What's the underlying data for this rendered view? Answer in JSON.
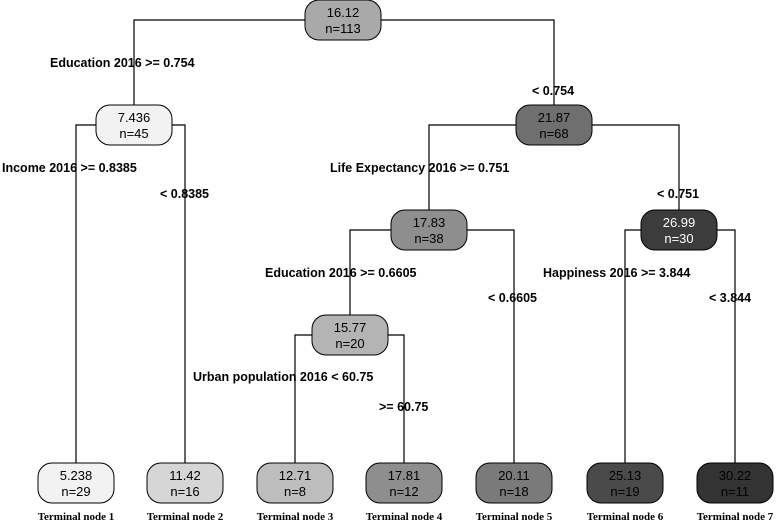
{
  "nodes": [
    {
      "id": "root",
      "value": "16.12",
      "n": "n=113",
      "fill": "#a9a9a9",
      "text": "#000000"
    },
    {
      "id": "n2",
      "value": "7.436",
      "n": "n=45",
      "fill": "#f2f2f2",
      "text": "#000000"
    },
    {
      "id": "n3",
      "value": "21.87",
      "n": "n=68",
      "fill": "#6f6f6f",
      "text": "#000000"
    },
    {
      "id": "n6",
      "value": "17.83",
      "n": "n=38",
      "fill": "#8e8e8e",
      "text": "#000000"
    },
    {
      "id": "n7",
      "value": "26.99",
      "n": "n=30",
      "fill": "#3c3c3c",
      "text": "#ffffff"
    },
    {
      "id": "n12",
      "value": "15.77",
      "n": "n=20",
      "fill": "#b4b4b4",
      "text": "#000000"
    },
    {
      "id": "t1",
      "value": "5.238",
      "n": "n=29",
      "fill": "#f2f2f2",
      "text": "#000000"
    },
    {
      "id": "t2",
      "value": "11.42",
      "n": "n=16",
      "fill": "#d6d6d6",
      "text": "#000000"
    },
    {
      "id": "t3",
      "value": "12.71",
      "n": "n=8",
      "fill": "#bdbdbd",
      "text": "#000000"
    },
    {
      "id": "t4",
      "value": "17.81",
      "n": "n=12",
      "fill": "#8e8e8e",
      "text": "#000000"
    },
    {
      "id": "t5",
      "value": "20.11",
      "n": "n=18",
      "fill": "#7a7a7a",
      "text": "#000000"
    },
    {
      "id": "t6",
      "value": "25.13",
      "n": "n=19",
      "fill": "#4a4a4a",
      "text": "#000000"
    },
    {
      "id": "t7",
      "value": "30.22",
      "n": "n=11",
      "fill": "#333333",
      "text": "#000000"
    }
  ],
  "splits": [
    {
      "id": "s1",
      "text": "Education 2016 >= 0.754"
    },
    {
      "id": "s2",
      "text": "< 0.754"
    },
    {
      "id": "s3",
      "text": "Income 2016 >= 0.8385"
    },
    {
      "id": "s4",
      "text": "< 0.8385"
    },
    {
      "id": "s5",
      "text": "Life Expectancy 2016 >= 0.751"
    },
    {
      "id": "s6",
      "text": "< 0.751"
    },
    {
      "id": "s7",
      "text": "Education 2016 >= 0.6605"
    },
    {
      "id": "s8",
      "text": "< 0.6605"
    },
    {
      "id": "s9",
      "text": "Happiness 2016 >= 3.844"
    },
    {
      "id": "s10",
      "text": "< 3.844"
    },
    {
      "id": "s11",
      "text": "Urban population 2016 < 60.75"
    },
    {
      "id": "s12",
      "text": ">= 60.75"
    }
  ],
  "terminal_labels": [
    "Terminal node 1",
    "Terminal node 2",
    "Terminal node 3",
    "Terminal node 4",
    "Terminal node 5",
    "Terminal node 6",
    "Terminal node 7"
  ]
}
